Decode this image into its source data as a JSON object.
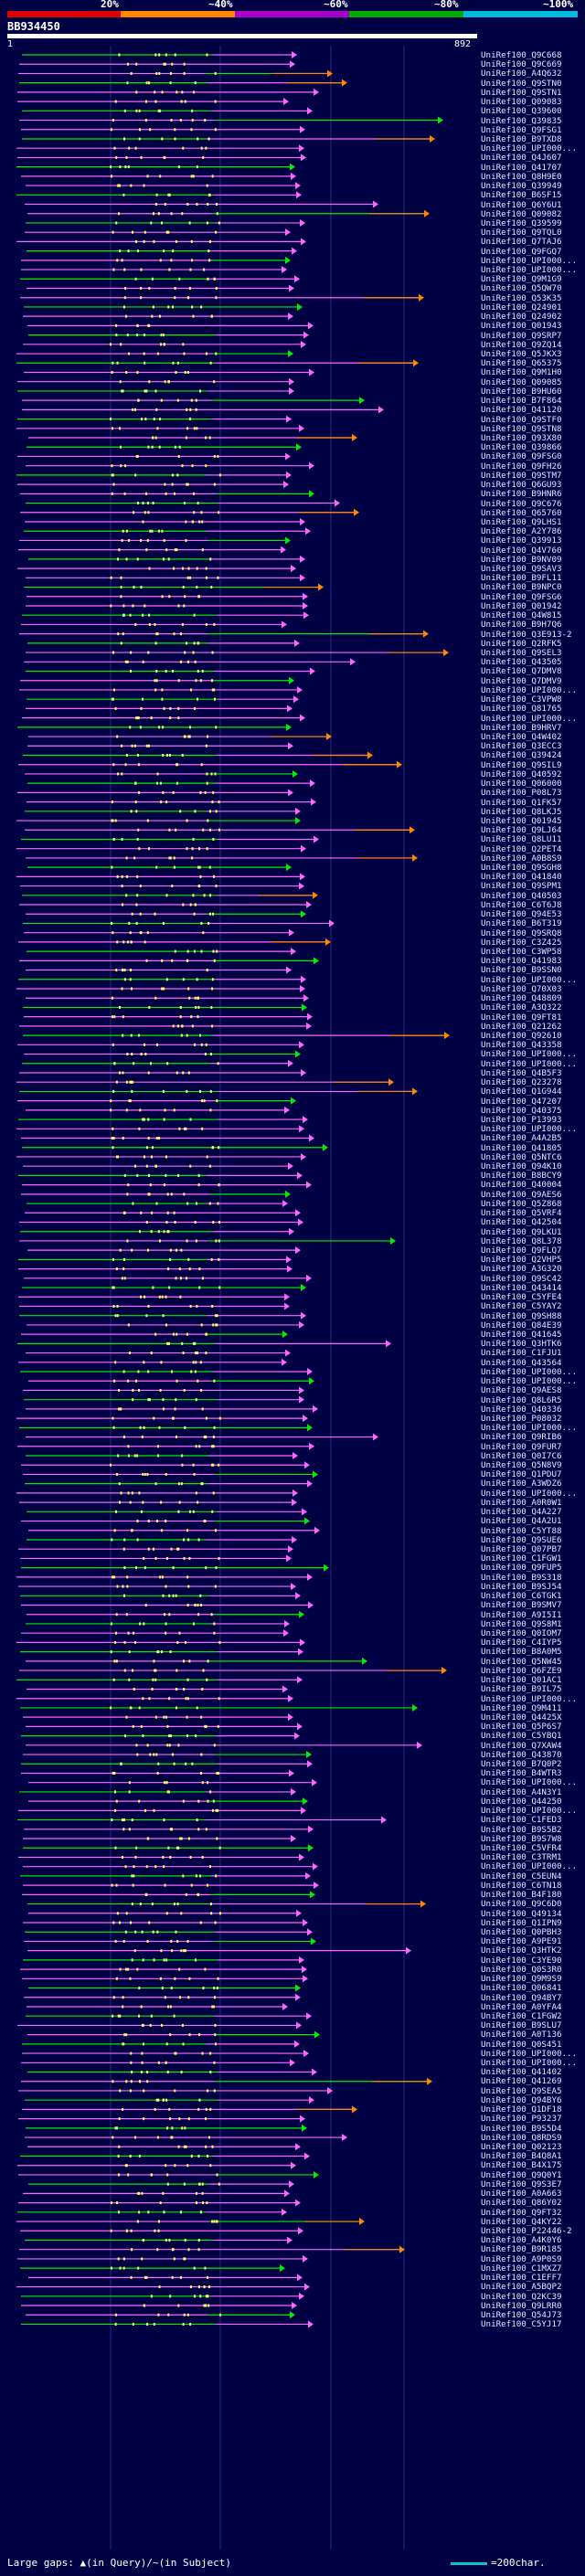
{
  "legend": {
    "bands": [
      {
        "label": "20%",
        "color": "#dd0000"
      },
      {
        "label": "~40%",
        "color": "#ff8800"
      },
      {
        "label": "~60%",
        "color": "#aa00cc"
      },
      {
        "label": "~80%",
        "color": "#00aa00"
      },
      {
        "label": "~100%",
        "color": "#00bbdd"
      }
    ]
  },
  "query": {
    "id": "BB934450",
    "start": "1",
    "end": "892",
    "length": 892
  },
  "colors": {
    "background": "#000044",
    "high": "#00ee00",
    "mid": "#ff66ff",
    "low": "#ff8800",
    "insert": "#ffff66"
  },
  "footer": {
    "text": "Large gaps: ▲(in Query)/~(in Subject)",
    "scale_text": "=200char."
  },
  "hits": [
    "UniRef100_Q9C668",
    "UniRef100_Q9C669",
    "UniRef100_A4Q632",
    "UniRef100_Q9STN0",
    "UniRef100_Q9STN1",
    "UniRef100_Q09083",
    "UniRef100_Q39600",
    "UniRef100_Q39835",
    "UniRef100_Q9FSG1",
    "UniRef100_B9TXD8",
    "UniRef100_UPI000...",
    "UniRef100_Q4J607",
    "UniRef100_Q41707",
    "UniRef100_Q8H9E0",
    "UniRef100_Q39949",
    "UniRef100_B6SF15",
    "UniRef100_Q6Y6U1",
    "UniRef100_Q09082",
    "UniRef100_Q39599",
    "UniRef100_Q9TQL0",
    "UniRef100_Q7TAJ6",
    "UniRef100_Q9FGQ7",
    "UniRef100_UPI000...",
    "UniRef100_UPI000...",
    "UniRef100_Q9M1G9",
    "UniRef100_Q5QW70",
    "UniRef100_Q53K35",
    "UniRef100_Q24901",
    "UniRef100_Q24902",
    "UniRef100_Q01943",
    "UniRef100_Q9SRP7",
    "UniRef100_Q9ZQ14",
    "UniRef100_Q5JKX3",
    "UniRef100_Q65375",
    "UniRef100_Q9M1H0",
    "UniRef100_Q09085",
    "UniRef100_B9HU60",
    "UniRef100_B7F864",
    "UniRef100_Q41120",
    "UniRef100_Q9STF0",
    "UniRef100_Q9STN8",
    "UniRef100_Q93X80",
    "UniRef100_Q39866",
    "UniRef100_Q9FSG0",
    "UniRef100_Q9FH26",
    "UniRef100_Q9STM7",
    "UniRef100_Q6GU93",
    "UniRef100_B9HNR6",
    "UniRef100_Q9C676",
    "UniRef100_Q65760",
    "UniRef100_Q9LHS1",
    "UniRef100_A2Y786",
    "UniRef100_Q39913",
    "UniRef100_Q4V760",
    "UniRef100_B9NV09",
    "UniRef100_Q9SAV3",
    "UniRef100_B9FL11",
    "UniRef100_B9NPC0",
    "UniRef100_Q9FSG6",
    "UniRef100_Q01942",
    "UniRef100_Q4W815",
    "UniRef100_B9H7Q6",
    "UniRef100_Q3E913-2",
    "UniRef100_Q2RFK5",
    "UniRef100_Q9SEL3",
    "UniRef100_Q43505",
    "UniRef100_Q7DMV8",
    "UniRef100_Q7DMV9",
    "UniRef100_UPI000...",
    "UniRef100_C3VPW8",
    "UniRef100_Q81765",
    "UniRef100_UPI000...",
    "UniRef100_B9HRV7",
    "UniRef100_Q4W402",
    "UniRef100_Q3ECC3",
    "UniRef100_Q39424",
    "UniRef100_Q9SIL9",
    "UniRef100_Q40592",
    "UniRef100_Q06000",
    "UniRef100_P08L73",
    "UniRef100_Q1FK57",
    "UniRef100_Q8LKJ5",
    "UniRef100_Q01945",
    "UniRef100_Q9LJ64",
    "UniRef100_Q8LU11",
    "UniRef100_Q2PET4",
    "UniRef100_A0B8S9",
    "UniRef100_Q9SGH8",
    "UniRef100_Q41840",
    "UniRef100_Q9SPM1",
    "UniRef100_Q40503",
    "UniRef100_C6T6J8",
    "UniRef100_Q94E53",
    "UniRef100_B6T319",
    "UniRef100_Q9SRQ8",
    "UniRef100_C3Z425",
    "UniRef100_C3WP58",
    "UniRef100_Q41983",
    "UniRef100_B9SSN0",
    "UniRef100_UPI000...",
    "UniRef100_Q70X03",
    "UniRef100_Q48809",
    "UniRef100_A3Q322",
    "UniRef100_Q9FT81",
    "UniRef100_Q21262",
    "UniRef100_Q92610",
    "UniRef100_Q43358",
    "UniRef100_UPI000...",
    "UniRef100_UPI000...",
    "UniRef100_Q4B5F3",
    "UniRef100_Q23278",
    "UniRef100_Q1G944",
    "UniRef100_Q47207",
    "UniRef100_Q40375",
    "UniRef100_P13993",
    "UniRef100_UPI000...",
    "UniRef100_A4A2B5",
    "UniRef100_Q41805",
    "UniRef100_Q5NTC6",
    "UniRef100_Q94K10",
    "UniRef100_B8BCY9",
    "UniRef100_Q40004",
    "UniRef100_Q9AES6",
    "UniRef100_Q5Z868",
    "UniRef100_Q5VRF4",
    "UniRef100_Q42504",
    "UniRef100_Q9LKU1",
    "UniRef100_Q8L378",
    "UniRef100_Q9FLQ7",
    "UniRef100_Q2VHP5",
    "UniRef100_A3G320",
    "UniRef100_Q9SC42",
    "UniRef100_Q43414",
    "UniRef100_C5YFE4",
    "UniRef100_C5YAY2",
    "UniRef100_Q9SH88",
    "UniRef100_Q84E39",
    "UniRef100_Q41645",
    "UniRef100_Q3HTK6",
    "UniRef100_C1FJU1",
    "UniRef100_Q43564",
    "UniRef100_UPI000...",
    "UniRef100_UPI000...",
    "UniRef100_Q9AES8",
    "UniRef100_Q8L6R5",
    "UniRef100_Q40336",
    "UniRef100_P08032",
    "UniRef100_UPI000...",
    "UniRef100_Q9RIB6",
    "UniRef100_Q9FUR7",
    "UniRef100_Q0I7C6",
    "UniRef100_Q5N8V9",
    "UniRef100_Q1PDU7",
    "UniRef100_A3WDZ6",
    "UniRef100_UPI000...",
    "UniRef100_A0R0W1",
    "UniRef100_Q4A227",
    "UniRef100_Q4A2U1",
    "UniRef100_C5YT88",
    "UniRef100_Q9SUE6",
    "UniRef100_Q07PB7",
    "UniRef100_C1FGW1",
    "UniRef100_Q9FUP5",
    "UniRef100_B9S318",
    "UniRef100_B9SJ54",
    "UniRef100_C6TGK1",
    "UniRef100_B9SMV7",
    "UniRef100_A9I5I1",
    "UniRef100_Q9S8M1",
    "UniRef100_Q0IOM7",
    "UniRef100_C4IYP5",
    "UniRef100_B8A0M5",
    "UniRef100_Q5NW45",
    "UniRef100_Q6FZE9",
    "UniRef100_Q01AC1",
    "UniRef100_B9IL75",
    "UniRef100_UPI000...",
    "UniRef100_Q9M411",
    "UniRef100_Q4425X",
    "UniRef100_Q5P6S7",
    "UniRef100_C5YBQ1",
    "UniRef100_Q7XAW4",
    "UniRef100_Q43870",
    "UniRef100_B7Q0P2",
    "UniRef100_B4WTR3",
    "UniRef100_UPI000...",
    "UniRef100_A4N3Y1",
    "UniRef100_Q44250",
    "UniRef100_UPI000...",
    "UniRef100_C1FED3",
    "UniRef100_B9S5B2",
    "UniRef100_B9S7W8",
    "UniRef100_C5VFR4",
    "UniRef100_C3TRM1",
    "UniRef100_UPI000...",
    "UniRef100_C5EUN4",
    "UniRef100_C6TN18",
    "UniRef100_B4F180",
    "UniRef100_Q9C6D0",
    "UniRef100_Q49134",
    "UniRef100_Q1IPN9",
    "UniRef100_Q0PBH3",
    "UniRef100_A9PE91",
    "UniRef100_Q3HTK2",
    "UniRef100_C3YE90",
    "UniRef100_Q0S3R0",
    "UniRef100_Q9M9S9",
    "UniRef100_Q06841",
    "UniRef100_Q94BY7",
    "UniRef100_A0YFA4",
    "UniRef100_C1FGW2",
    "UniRef100_B9SLU7",
    "UniRef100_A0T136",
    "UniRef100_Q0S451",
    "UniRef100_UPI000...",
    "UniRef100_UPI000...",
    "UniRef100_Q41402",
    "UniRef100_Q41269",
    "UniRef100_Q9SEA5",
    "UniRef100_Q94BY6",
    "UniRef100_Q1DF18",
    "UniRef100_P93237",
    "UniRef100_B9S5D4",
    "UniRef100_Q8RDS9",
    "UniRef100_Q02123",
    "UniRef100_B4Q8A1",
    "UniRef100_B4X175",
    "UniRef100_Q9Q0Y1",
    "UniRef100_Q9S3E7",
    "UniRef100_A0A663",
    "UniRef100_Q86Y02",
    "UniRef100_Q9FT32",
    "UniRef100_Q4KY22",
    "UniRef100_P22446-2",
    "UniRef100_A4K0Y6",
    "UniRef100_B9R185",
    "UniRef100_A9P0S9",
    "UniRef100_C1MXZ7",
    "UniRef100_C1EFF7",
    "UniRef100_A5BQP2",
    "UniRef100_Q2KC39",
    "UniRef100_Q9LRR0",
    "UniRef100_Q54J73",
    "UniRef100_C5YJ17"
  ]
}
